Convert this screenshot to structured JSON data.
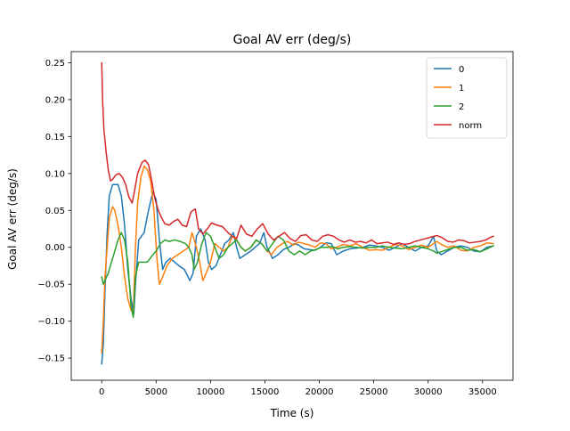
{
  "chart_data": {
    "type": "line",
    "title": "Goal AV err (deg/s)",
    "xlabel": "Time (s)",
    "ylabel": "Goal AV err (deg/s)",
    "xlim": [
      -2800,
      37800
    ],
    "ylim": [
      -0.18,
      0.265
    ],
    "xticks": [
      0,
      5000,
      10000,
      15000,
      20000,
      25000,
      30000,
      35000
    ],
    "xtick_labels": [
      "0",
      "5000",
      "10000",
      "15000",
      "20000",
      "25000",
      "30000",
      "35000"
    ],
    "yticks": [
      -0.15,
      -0.1,
      -0.05,
      0.0,
      0.05,
      0.1,
      0.15,
      0.2,
      0.25
    ],
    "ytick_labels": [
      "−0.15",
      "−0.10",
      "−0.05",
      "0.00",
      "0.05",
      "0.10",
      "0.15",
      "0.20",
      "0.25"
    ],
    "grid": false,
    "legend_position": "top-right",
    "series": [
      {
        "name": "0",
        "color": "#1f77b4",
        "x": [
          0,
          150,
          300,
          500,
          700,
          1000,
          1500,
          1800,
          2100,
          2400,
          2700,
          2950,
          3100,
          3400,
          3900,
          4300,
          4700,
          5000,
          5300,
          5600,
          5900,
          6300,
          6700,
          7100,
          7600,
          8100,
          8400,
          8700,
          9100,
          9500,
          9800,
          10100,
          10500,
          10900,
          11300,
          11700,
          12100,
          12400,
          12700,
          13200,
          13700,
          14100,
          14500,
          14900,
          15200,
          15700,
          16200,
          16700,
          17200,
          17700,
          18100,
          18600,
          19100,
          19600,
          20100,
          20600,
          21100,
          21600,
          22200,
          22800,
          23400,
          24000,
          24600,
          25200,
          25800,
          26400,
          27000,
          27600,
          28200,
          28800,
          29400,
          30000,
          30500,
          30800,
          31200,
          31800,
          32400,
          33000,
          33600,
          34200,
          34800,
          35400,
          36000
        ],
        "y": [
          -0.158,
          -0.13,
          -0.06,
          0.02,
          0.07,
          0.085,
          0.085,
          0.07,
          0.03,
          -0.03,
          -0.07,
          -0.09,
          -0.05,
          0.01,
          0.02,
          0.05,
          0.075,
          0.065,
          0.01,
          -0.03,
          -0.02,
          -0.015,
          -0.02,
          -0.025,
          -0.03,
          -0.045,
          -0.035,
          0.015,
          0.025,
          0.01,
          -0.02,
          -0.03,
          -0.025,
          -0.01,
          0.005,
          0.01,
          0.02,
          0.0,
          -0.015,
          -0.01,
          -0.005,
          0.0,
          0.005,
          0.02,
          0.0,
          -0.015,
          -0.01,
          -0.003,
          0.0,
          0.005,
          0.003,
          -0.002,
          -0.003,
          -0.004,
          0.0,
          0.006,
          0.005,
          -0.01,
          -0.005,
          -0.002,
          -0.001,
          0.0,
          0.003,
          0.002,
          0.0,
          -0.004,
          0.0,
          0.005,
          0.0,
          -0.005,
          0.0,
          0.002,
          0.015,
          -0.005,
          -0.01,
          -0.005,
          0.0,
          0.002,
          0.0,
          -0.005,
          -0.006,
          0.0,
          0.002
        ]
      },
      {
        "name": "1",
        "color": "#ff7f0e",
        "x": [
          0,
          150,
          300,
          500,
          700,
          1000,
          1200,
          1500,
          1800,
          2100,
          2400,
          2700,
          2900,
          3100,
          3300,
          3600,
          3900,
          4200,
          4500,
          4800,
          5100,
          5300,
          5600,
          6000,
          6500,
          7000,
          7500,
          8000,
          8300,
          8700,
          9000,
          9300,
          9600,
          10000,
          10400,
          10800,
          11200,
          11600,
          12000,
          12400,
          12800,
          13200,
          13700,
          14200,
          14700,
          15200,
          15600,
          16100,
          16600,
          17100,
          17600,
          18100,
          18600,
          19100,
          19600,
          20100,
          20600,
          21100,
          21600,
          22200,
          22800,
          23400,
          24000,
          24600,
          25200,
          25800,
          26400,
          27000,
          27600,
          28200,
          28800,
          29400,
          30000,
          30500,
          30800,
          31200,
          31800,
          32400,
          33000,
          33600,
          34200,
          34800,
          35400,
          36000
        ],
        "y": [
          -0.143,
          -0.1,
          -0.04,
          0.0,
          0.04,
          0.055,
          0.05,
          0.03,
          0.0,
          -0.04,
          -0.07,
          -0.085,
          -0.09,
          0.0,
          0.06,
          0.095,
          0.11,
          0.105,
          0.09,
          0.05,
          -0.02,
          -0.05,
          -0.04,
          -0.025,
          -0.015,
          -0.01,
          -0.005,
          0.0,
          0.02,
          0.0,
          -0.02,
          -0.045,
          -0.035,
          -0.02,
          0.005,
          0.0,
          -0.005,
          0.0,
          0.015,
          0.01,
          0.0,
          -0.005,
          0.0,
          0.01,
          0.005,
          -0.005,
          -0.01,
          0.0,
          0.005,
          0.008,
          0.003,
          0.007,
          0.005,
          0.003,
          0.0,
          0.006,
          0.005,
          -0.002,
          0.0,
          0.004,
          0.002,
          0.005,
          0.0,
          -0.004,
          -0.003,
          -0.004,
          0.0,
          0.004,
          0.002,
          -0.003,
          0.0,
          0.003,
          0.0,
          0.005,
          0.008,
          0.004,
          0.0,
          0.002,
          -0.004,
          -0.005,
          0.0,
          0.002,
          0.006,
          0.005
        ]
      },
      {
        "name": "2",
        "color": "#2ca02c",
        "x": [
          0,
          150,
          300,
          600,
          900,
          1200,
          1500,
          1800,
          2100,
          2400,
          2700,
          2900,
          3100,
          3400,
          3800,
          4200,
          4600,
          5000,
          5400,
          5800,
          6200,
          6700,
          7200,
          7700,
          8000,
          8300,
          8500,
          8800,
          9200,
          9600,
          10000,
          10400,
          10800,
          11200,
          11600,
          12000,
          12400,
          12800,
          13200,
          13700,
          14200,
          14700,
          15200,
          15700,
          16200,
          16700,
          17200,
          17700,
          18200,
          18700,
          19200,
          19700,
          20200,
          20700,
          21200,
          21700,
          22200,
          22800,
          23400,
          24000,
          24600,
          25200,
          25800,
          26400,
          27000,
          27600,
          28200,
          28800,
          29400,
          30000,
          30500,
          30800,
          31200,
          31800,
          32400,
          33000,
          33600,
          34200,
          34800,
          35400,
          36000
        ],
        "y": [
          -0.04,
          -0.05,
          -0.045,
          -0.035,
          -0.02,
          -0.005,
          0.01,
          0.02,
          0.01,
          -0.02,
          -0.08,
          -0.095,
          -0.04,
          -0.02,
          -0.02,
          -0.02,
          -0.012,
          -0.005,
          0.005,
          0.01,
          0.008,
          0.01,
          0.008,
          0.005,
          0.0,
          -0.01,
          -0.03,
          -0.02,
          0.005,
          0.02,
          0.015,
          0.0,
          -0.015,
          -0.01,
          0.0,
          0.005,
          0.01,
          0.0,
          -0.005,
          0.0,
          0.01,
          0.005,
          -0.005,
          0.005,
          0.015,
          0.01,
          -0.005,
          -0.01,
          -0.005,
          -0.01,
          -0.005,
          -0.003,
          0.0,
          0.0,
          0.001,
          -0.002,
          0.0,
          0.001,
          0.0,
          -0.001,
          0.0,
          0.0,
          0.002,
          0.0,
          -0.001,
          -0.002,
          0.0,
          0.002,
          0.0,
          -0.002,
          -0.005,
          -0.008,
          -0.006,
          -0.003,
          0.0,
          0.0,
          -0.004,
          -0.003,
          -0.006,
          -0.002,
          0.002
        ]
      },
      {
        "name": "norm",
        "color": "#d62728",
        "x": [
          0,
          80,
          200,
          400,
          600,
          800,
          1000,
          1300,
          1600,
          1900,
          2200,
          2500,
          2800,
          3000,
          3300,
          3700,
          4000,
          4300,
          4600,
          4900,
          5200,
          5500,
          5800,
          6200,
          6600,
          7000,
          7400,
          7800,
          8200,
          8600,
          8900,
          9300,
          9700,
          10100,
          10600,
          11100,
          11600,
          12000,
          12400,
          12800,
          13300,
          13800,
          14300,
          14800,
          15300,
          15800,
          16300,
          16800,
          17300,
          17800,
          18300,
          18800,
          19300,
          19800,
          20300,
          20800,
          21300,
          21800,
          22300,
          22800,
          23300,
          23800,
          24300,
          24800,
          25300,
          25800,
          26300,
          26800,
          27300,
          27800,
          28300,
          28800,
          29300,
          29800,
          30300,
          30800,
          31300,
          31800,
          32300,
          32800,
          33300,
          33800,
          34300,
          34800,
          35300,
          35800,
          36000
        ],
        "y": [
          0.25,
          0.2,
          0.16,
          0.13,
          0.105,
          0.09,
          0.092,
          0.098,
          0.1,
          0.095,
          0.085,
          0.068,
          0.06,
          0.075,
          0.1,
          0.115,
          0.118,
          0.112,
          0.09,
          0.065,
          0.05,
          0.04,
          0.032,
          0.03,
          0.035,
          0.038,
          0.03,
          0.028,
          0.048,
          0.052,
          0.025,
          0.018,
          0.025,
          0.033,
          0.03,
          0.028,
          0.02,
          0.015,
          0.012,
          0.03,
          0.018,
          0.015,
          0.025,
          0.032,
          0.018,
          0.01,
          0.015,
          0.02,
          0.012,
          0.008,
          0.016,
          0.017,
          0.01,
          0.008,
          0.015,
          0.017,
          0.015,
          0.01,
          0.007,
          0.01,
          0.007,
          0.008,
          0.006,
          0.01,
          0.005,
          0.006,
          0.007,
          0.004,
          0.006,
          0.004,
          0.005,
          0.008,
          0.01,
          0.012,
          0.014,
          0.016,
          0.013,
          0.008,
          0.007,
          0.01,
          0.009,
          0.006,
          0.007,
          0.008,
          0.01,
          0.014,
          0.015
        ]
      }
    ]
  }
}
